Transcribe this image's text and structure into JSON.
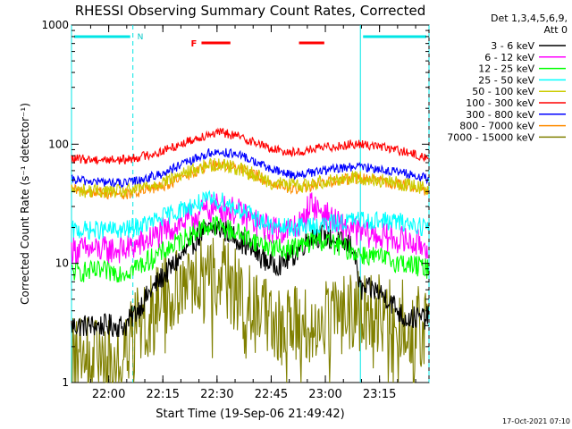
{
  "chart_data": {
    "type": "line",
    "title": "RHESSI Observing Summary Count Rates, Corrected",
    "xlabel": "Start Time (19-Sep-06 21:49:42)",
    "ylabel": "Corrected Count Rate (s⁻¹ detector⁻¹)",
    "ylog": true,
    "ylim": [
      1,
      1000
    ],
    "xlim_minutes_after_start": [
      0,
      99
    ],
    "x_tick_labels": [
      "22:00",
      "22:15",
      "22:30",
      "22:45",
      "23:00",
      "23:15"
    ],
    "x_tick_minutes_after_start": [
      10.3,
      25.3,
      40.3,
      55.3,
      70.3,
      85.3
    ],
    "y_tick_labels": [
      "1",
      "10",
      "100",
      "1000"
    ],
    "y_ticks": [
      1,
      10,
      100,
      1000
    ],
    "legend": {
      "placement": "right",
      "header_line1": "Det 1,3,4,5,6,9,",
      "header_line2": "Att 0"
    },
    "series": [
      {
        "name": "3 - 6 keV",
        "color": "#000000",
        "points": [
          [
            0,
            3
          ],
          [
            15,
            3
          ],
          [
            18,
            4
          ],
          [
            24,
            7
          ],
          [
            30,
            11
          ],
          [
            36,
            18
          ],
          [
            40,
            20
          ],
          [
            44,
            18
          ],
          [
            50,
            13
          ],
          [
            55,
            10
          ],
          [
            58,
            10
          ],
          [
            62,
            12
          ],
          [
            66,
            17
          ],
          [
            70,
            17
          ],
          [
            74,
            15
          ],
          [
            78,
            14
          ],
          [
            80,
            6
          ],
          [
            84,
            6
          ],
          [
            88,
            5
          ],
          [
            92,
            3.5
          ],
          [
            99,
            3.5
          ]
        ]
      },
      {
        "name": "6 - 12 keV",
        "color": "#ff00ff",
        "points": [
          [
            0,
            13
          ],
          [
            15,
            13
          ],
          [
            20,
            15
          ],
          [
            28,
            20
          ],
          [
            34,
            25
          ],
          [
            40,
            30
          ],
          [
            46,
            27
          ],
          [
            52,
            21
          ],
          [
            56,
            19
          ],
          [
            60,
            19
          ],
          [
            64,
            22
          ],
          [
            66,
            32
          ],
          [
            70,
            26
          ],
          [
            74,
            21
          ],
          [
            78,
            19
          ],
          [
            84,
            17
          ],
          [
            90,
            16
          ],
          [
            99,
            14
          ]
        ]
      },
      {
        "name": "12 - 25 keV",
        "color": "#00ff00",
        "points": [
          [
            0,
            8.5
          ],
          [
            15,
            8.5
          ],
          [
            20,
            10
          ],
          [
            28,
            14
          ],
          [
            36,
            20
          ],
          [
            40,
            21
          ],
          [
            46,
            18
          ],
          [
            52,
            15
          ],
          [
            58,
            13
          ],
          [
            64,
            14
          ],
          [
            68,
            16
          ],
          [
            74,
            14
          ],
          [
            80,
            12
          ],
          [
            86,
            11
          ],
          [
            92,
            10
          ],
          [
            99,
            9
          ]
        ]
      },
      {
        "name": "25 - 50 keV",
        "color": "#00ffff",
        "points": [
          [
            0,
            19
          ],
          [
            15,
            19
          ],
          [
            22,
            22
          ],
          [
            30,
            28
          ],
          [
            38,
            34
          ],
          [
            42,
            33
          ],
          [
            50,
            25
          ],
          [
            56,
            20
          ],
          [
            62,
            20
          ],
          [
            70,
            21
          ],
          [
            78,
            23
          ],
          [
            84,
            23
          ],
          [
            92,
            22
          ],
          [
            99,
            20
          ]
        ]
      },
      {
        "name": "50 - 100 keV",
        "color": "#cccc00",
        "points": [
          [
            0,
            41
          ],
          [
            15,
            40
          ],
          [
            24,
            47
          ],
          [
            32,
            58
          ],
          [
            38,
            67
          ],
          [
            42,
            68
          ],
          [
            48,
            60
          ],
          [
            56,
            47
          ],
          [
            64,
            45
          ],
          [
            72,
            50
          ],
          [
            78,
            53
          ],
          [
            84,
            50
          ],
          [
            92,
            46
          ],
          [
            99,
            43
          ]
        ]
      },
      {
        "name": "100 - 300 keV",
        "color": "#ff0000",
        "points": [
          [
            0,
            75
          ],
          [
            15,
            74
          ],
          [
            24,
            85
          ],
          [
            32,
            105
          ],
          [
            38,
            122
          ],
          [
            42,
            125
          ],
          [
            48,
            112
          ],
          [
            56,
            90
          ],
          [
            62,
            85
          ],
          [
            70,
            94
          ],
          [
            78,
            100
          ],
          [
            84,
            98
          ],
          [
            92,
            86
          ],
          [
            99,
            76
          ]
        ]
      },
      {
        "name": "300 - 800 keV",
        "color": "#0000ff",
        "points": [
          [
            0,
            50
          ],
          [
            15,
            47
          ],
          [
            24,
            55
          ],
          [
            32,
            70
          ],
          [
            38,
            84
          ],
          [
            42,
            86
          ],
          [
            48,
            78
          ],
          [
            56,
            60
          ],
          [
            62,
            55
          ],
          [
            70,
            60
          ],
          [
            78,
            65
          ],
          [
            84,
            63
          ],
          [
            92,
            57
          ],
          [
            99,
            51
          ]
        ]
      },
      {
        "name": "800 - 7000 keV",
        "color": "#ff8c00",
        "points": [
          [
            0,
            41
          ],
          [
            15,
            38
          ],
          [
            24,
            43
          ],
          [
            32,
            55
          ],
          [
            38,
            65
          ],
          [
            42,
            67
          ],
          [
            48,
            60
          ],
          [
            56,
            47
          ],
          [
            62,
            42
          ],
          [
            70,
            47
          ],
          [
            78,
            52
          ],
          [
            84,
            50
          ],
          [
            92,
            45
          ],
          [
            99,
            41
          ]
        ]
      },
      {
        "name": "7000 - 15000 keV",
        "color": "#808000",
        "points": [
          [
            0,
            1.6
          ],
          [
            12,
            1.6
          ],
          [
            15,
            2
          ],
          [
            20,
            3.5
          ],
          [
            26,
            5.5
          ],
          [
            32,
            7.5
          ],
          [
            38,
            8
          ],
          [
            42,
            7.5
          ],
          [
            48,
            5
          ],
          [
            52,
            3.5
          ],
          [
            58,
            3
          ],
          [
            64,
            3
          ],
          [
            68,
            3
          ],
          [
            72,
            3.5
          ],
          [
            78,
            4
          ],
          [
            84,
            4
          ],
          [
            90,
            3.5
          ],
          [
            96,
            3
          ],
          [
            99,
            2.5
          ]
        ]
      }
    ],
    "annotations": {
      "time_boundaries_minutes": [
        0,
        17,
        80,
        99
      ],
      "night_bars": [
        {
          "label": "N",
          "from": 0,
          "to": 17
        },
        {
          "label": "",
          "from": 80,
          "to": 99
        }
      ],
      "flare_bars": [
        {
          "label": "F",
          "from": 36,
          "to": 44
        },
        {
          "label": "",
          "from": 63,
          "to": 70
        }
      ]
    },
    "footer_timestamp": "17-Oct-2021 07:10"
  }
}
